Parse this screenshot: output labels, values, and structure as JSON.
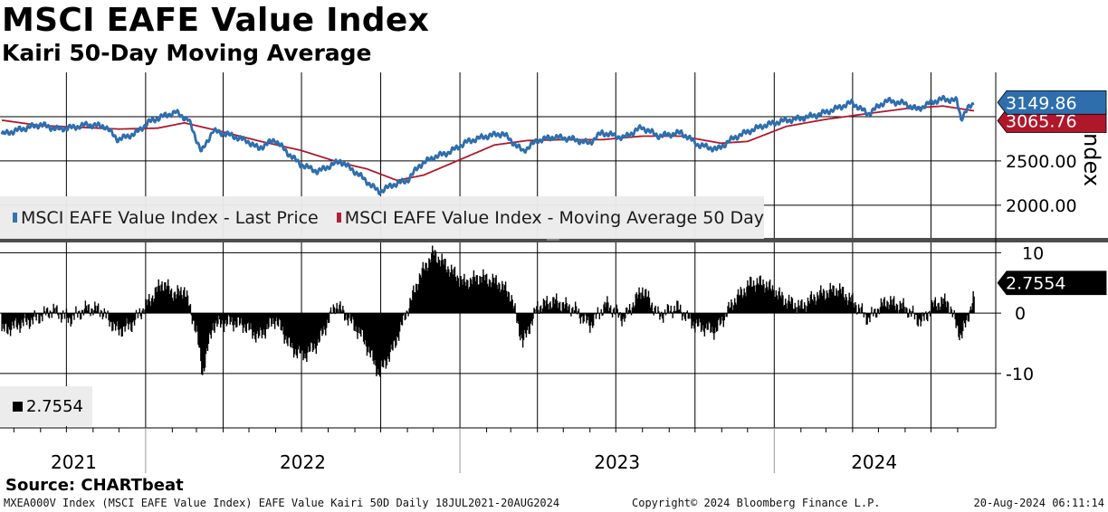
{
  "title": "MSCI EAFE Value Index",
  "subtitle": "Kairi 50-Day Moving Average",
  "source": "Source: CHARTbeat",
  "footer": {
    "left": "MXEA000V Index (MSCI EAFE Value Index) EAFE Value Kairi 50D  Daily 18JUL2021-20AUG2024",
    "center": "Copyright© 2024 Bloomberg Finance L.P.",
    "right": "20-Aug-2024 06:11:14"
  },
  "colors": {
    "price": "#2e6ead",
    "ma": "#b0172b",
    "kairi": "#000000",
    "grid": "#000000"
  },
  "chart_data": [
    {
      "type": "line",
      "title": "MSCI EAFE Value Index",
      "ylabel": "Index",
      "ylim": [
        1600,
        3500
      ],
      "yticks": [
        2000,
        2500
      ],
      "ytick_labels": [
        "2000.00",
        "2500.00"
      ],
      "x_range": [
        "2021-07-18",
        "2024-08-20"
      ],
      "x_ticks": [
        "2021",
        "2022",
        "2023",
        "2024"
      ],
      "series": [
        {
          "name": "MSCI EAFE Value Index - Last Price",
          "color": "#2e6ead",
          "last_value_label": "3149.86",
          "points": [
            [
              "2021-07-18",
              2800
            ],
            [
              "2021-08-10",
              2860
            ],
            [
              "2021-09-01",
              2910
            ],
            [
              "2021-09-20",
              2860
            ],
            [
              "2021-10-10",
              2880
            ],
            [
              "2021-10-25",
              2910
            ],
            [
              "2021-11-15",
              2890
            ],
            [
              "2021-11-30",
              2740
            ],
            [
              "2021-12-20",
              2810
            ],
            [
              "2022-01-05",
              2940
            ],
            [
              "2022-01-20",
              3000
            ],
            [
              "2022-02-05",
              3050
            ],
            [
              "2022-02-20",
              2960
            ],
            [
              "2022-03-07",
              2600
            ],
            [
              "2022-03-20",
              2840
            ],
            [
              "2022-04-10",
              2790
            ],
            [
              "2022-04-30",
              2720
            ],
            [
              "2022-05-12",
              2640
            ],
            [
              "2022-05-31",
              2740
            ],
            [
              "2022-06-15",
              2590
            ],
            [
              "2022-06-30",
              2460
            ],
            [
              "2022-07-20",
              2380
            ],
            [
              "2022-08-15",
              2500
            ],
            [
              "2022-09-05",
              2350
            ],
            [
              "2022-09-29",
              2150
            ],
            [
              "2022-10-15",
              2230
            ],
            [
              "2022-11-01",
              2280
            ],
            [
              "2022-11-15",
              2450
            ],
            [
              "2022-12-01",
              2540
            ],
            [
              "2022-12-20",
              2600
            ],
            [
              "2023-01-10",
              2720
            ],
            [
              "2023-02-01",
              2780
            ],
            [
              "2023-02-20",
              2810
            ],
            [
              "2023-03-15",
              2610
            ],
            [
              "2023-04-01",
              2730
            ],
            [
              "2023-04-20",
              2770
            ],
            [
              "2023-05-10",
              2750
            ],
            [
              "2023-05-31",
              2700
            ],
            [
              "2023-06-15",
              2820
            ],
            [
              "2023-07-10",
              2760
            ],
            [
              "2023-07-31",
              2880
            ],
            [
              "2023-08-20",
              2780
            ],
            [
              "2023-09-15",
              2820
            ],
            [
              "2023-10-05",
              2680
            ],
            [
              "2023-10-27",
              2630
            ],
            [
              "2023-11-15",
              2760
            ],
            [
              "2023-12-01",
              2830
            ],
            [
              "2023-12-20",
              2900
            ],
            [
              "2024-01-10",
              2950
            ],
            [
              "2024-01-31",
              2980
            ],
            [
              "2024-02-20",
              3020
            ],
            [
              "2024-03-10",
              3080
            ],
            [
              "2024-03-31",
              3160
            ],
            [
              "2024-04-19",
              3030
            ],
            [
              "2024-05-10",
              3180
            ],
            [
              "2024-05-31",
              3150
            ],
            [
              "2024-06-15",
              3080
            ],
            [
              "2024-07-01",
              3160
            ],
            [
              "2024-07-15",
              3200
            ],
            [
              "2024-07-31",
              3180
            ],
            [
              "2024-08-05",
              2980
            ],
            [
              "2024-08-12",
              3080
            ],
            [
              "2024-08-20",
              3149.86
            ]
          ]
        },
        {
          "name": "MSCI EAFE Value Index - Moving Average 50 Day",
          "color": "#b0172b",
          "last_value_label": "3065.76",
          "points": [
            [
              "2021-07-18",
              2960
            ],
            [
              "2021-08-31",
              2900
            ],
            [
              "2021-10-15",
              2880
            ],
            [
              "2021-12-01",
              2860
            ],
            [
              "2022-01-15",
              2870
            ],
            [
              "2022-02-15",
              2930
            ],
            [
              "2022-03-31",
              2830
            ],
            [
              "2022-05-15",
              2720
            ],
            [
              "2022-06-30",
              2620
            ],
            [
              "2022-08-15",
              2480
            ],
            [
              "2022-09-15",
              2410
            ],
            [
              "2022-10-20",
              2280
            ],
            [
              "2022-11-20",
              2340
            ],
            [
              "2022-12-31",
              2510
            ],
            [
              "2023-02-10",
              2680
            ],
            [
              "2023-03-20",
              2730
            ],
            [
              "2023-05-01",
              2740
            ],
            [
              "2023-06-15",
              2740
            ],
            [
              "2023-08-01",
              2780
            ],
            [
              "2023-09-15",
              2780
            ],
            [
              "2023-10-31",
              2700
            ],
            [
              "2023-12-01",
              2720
            ],
            [
              "2024-01-15",
              2890
            ],
            [
              "2024-03-01",
              2970
            ],
            [
              "2024-04-15",
              3030
            ],
            [
              "2024-06-01",
              3090
            ],
            [
              "2024-07-15",
              3120
            ],
            [
              "2024-08-20",
              3065.76
            ]
          ]
        }
      ],
      "legend": [
        "MSCI EAFE Value Index - Last Price",
        "MSCI EAFE Value Index - Moving Average 50 Day"
      ]
    },
    {
      "type": "bar",
      "title": "EAFE Value Kairi 50D",
      "ylim": [
        -19,
        12
      ],
      "yticks": [
        10,
        0,
        -10
      ],
      "ytick_labels": [
        "10",
        "0",
        "-10"
      ],
      "series": [
        {
          "name": "Kairi 50D",
          "color": "#000000",
          "last_value_label": "2.7554",
          "points": [
            [
              "2021-07-18",
              -3
            ],
            [
              "2021-08-05",
              -2
            ],
            [
              "2021-08-25",
              -1
            ],
            [
              "2021-09-15",
              0.5
            ],
            [
              "2021-10-05",
              -1
            ],
            [
              "2021-10-25",
              0.8
            ],
            [
              "2021-11-10",
              0.5
            ],
            [
              "2021-11-30",
              -3
            ],
            [
              "2021-12-15",
              -2
            ],
            [
              "2022-01-05",
              2
            ],
            [
              "2022-01-20",
              5
            ],
            [
              "2022-02-05",
              3
            ],
            [
              "2022-02-15",
              4
            ],
            [
              "2022-03-01",
              -3
            ],
            [
              "2022-03-08",
              -10
            ],
            [
              "2022-03-20",
              -2
            ],
            [
              "2022-04-10",
              -1.5
            ],
            [
              "2022-04-25",
              -2
            ],
            [
              "2022-05-12",
              -4
            ],
            [
              "2022-06-01",
              -1
            ],
            [
              "2022-06-20",
              -6
            ],
            [
              "2022-07-05",
              -7
            ],
            [
              "2022-07-20",
              -5
            ],
            [
              "2022-08-10",
              1.5
            ],
            [
              "2022-08-25",
              -1
            ],
            [
              "2022-09-10",
              -4
            ],
            [
              "2022-09-29",
              -10
            ],
            [
              "2022-10-15",
              -6
            ],
            [
              "2022-11-01",
              0.5
            ],
            [
              "2022-11-15",
              6
            ],
            [
              "2022-12-01",
              10
            ],
            [
              "2022-12-15",
              8
            ],
            [
              "2023-01-05",
              5
            ],
            [
              "2023-01-25",
              6
            ],
            [
              "2023-02-15",
              5
            ],
            [
              "2023-03-01",
              3
            ],
            [
              "2023-03-15",
              -5
            ],
            [
              "2023-04-01",
              1
            ],
            [
              "2023-04-20",
              2
            ],
            [
              "2023-05-15",
              0.5
            ],
            [
              "2023-06-01",
              -2
            ],
            [
              "2023-06-20",
              1.5
            ],
            [
              "2023-07-10",
              -1
            ],
            [
              "2023-08-01",
              4
            ],
            [
              "2023-08-20",
              -0.5
            ],
            [
              "2023-09-10",
              1
            ],
            [
              "2023-10-01",
              -2
            ],
            [
              "2023-10-25",
              -3
            ],
            [
              "2023-11-15",
              2
            ],
            [
              "2023-12-05",
              5
            ],
            [
              "2023-12-20",
              5
            ],
            [
              "2024-01-15",
              2
            ],
            [
              "2024-02-01",
              1
            ],
            [
              "2024-02-20",
              3
            ],
            [
              "2024-03-15",
              4
            ],
            [
              "2024-04-01",
              2
            ],
            [
              "2024-04-19",
              -1
            ],
            [
              "2024-05-10",
              2
            ],
            [
              "2024-05-31",
              1
            ],
            [
              "2024-06-20",
              -1.5
            ],
            [
              "2024-07-05",
              1.5
            ],
            [
              "2024-07-20",
              2
            ],
            [
              "2024-08-05",
              -4
            ],
            [
              "2024-08-12",
              -1
            ],
            [
              "2024-08-20",
              2.7554
            ]
          ]
        }
      ],
      "legend": [
        "2.7554"
      ]
    }
  ]
}
